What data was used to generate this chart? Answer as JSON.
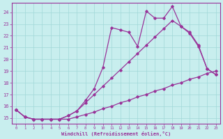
{
  "xlabel": "Windchill (Refroidissement éolien,°C)",
  "bg_color": "#c8eeee",
  "grid_color": "#a0d8d8",
  "line_color": "#993399",
  "x_ticks": [
    0,
    1,
    2,
    3,
    4,
    5,
    6,
    7,
    8,
    9,
    10,
    11,
    12,
    13,
    14,
    15,
    16,
    17,
    18,
    19,
    20,
    21,
    22,
    23
  ],
  "y_min": 14.5,
  "y_max": 24.8,
  "y_ticks": [
    15,
    16,
    17,
    18,
    19,
    20,
    21,
    22,
    23,
    24
  ],
  "line1_x": [
    0,
    1,
    2,
    3,
    4,
    5,
    6,
    7,
    8,
    9,
    10,
    11,
    12,
    13,
    14,
    15,
    16,
    17,
    18,
    19,
    20,
    21,
    22,
    23
  ],
  "line1_y": [
    15.7,
    15.1,
    14.9,
    14.9,
    14.9,
    14.9,
    14.9,
    15.1,
    15.3,
    15.5,
    15.8,
    16.0,
    16.3,
    16.5,
    16.8,
    17.0,
    17.3,
    17.5,
    17.8,
    18.0,
    18.3,
    18.5,
    18.8,
    19.0
  ],
  "line2_x": [
    0,
    1,
    2,
    3,
    4,
    5,
    6,
    7,
    8,
    9,
    10,
    11,
    12,
    13,
    14,
    15,
    16,
    17,
    18,
    19,
    20,
    21,
    22,
    23
  ],
  "line2_y": [
    15.7,
    15.1,
    14.9,
    14.9,
    14.9,
    14.9,
    15.2,
    15.6,
    16.3,
    17.0,
    17.7,
    18.4,
    19.1,
    19.8,
    20.5,
    21.2,
    21.9,
    22.6,
    23.3,
    22.8,
    22.3,
    21.2,
    19.2,
    18.7
  ],
  "line3_x": [
    0,
    1,
    2,
    3,
    4,
    5,
    6,
    7,
    8,
    9,
    10,
    11,
    12,
    13,
    14,
    15,
    16,
    17,
    18,
    19,
    20,
    21,
    22,
    23
  ],
  "line3_y": [
    15.7,
    15.1,
    14.9,
    14.9,
    14.9,
    14.9,
    15.2,
    15.6,
    16.5,
    17.5,
    19.3,
    22.7,
    22.5,
    22.3,
    21.1,
    24.1,
    23.5,
    23.5,
    24.5,
    22.8,
    22.2,
    21.1,
    19.2,
    18.7
  ]
}
